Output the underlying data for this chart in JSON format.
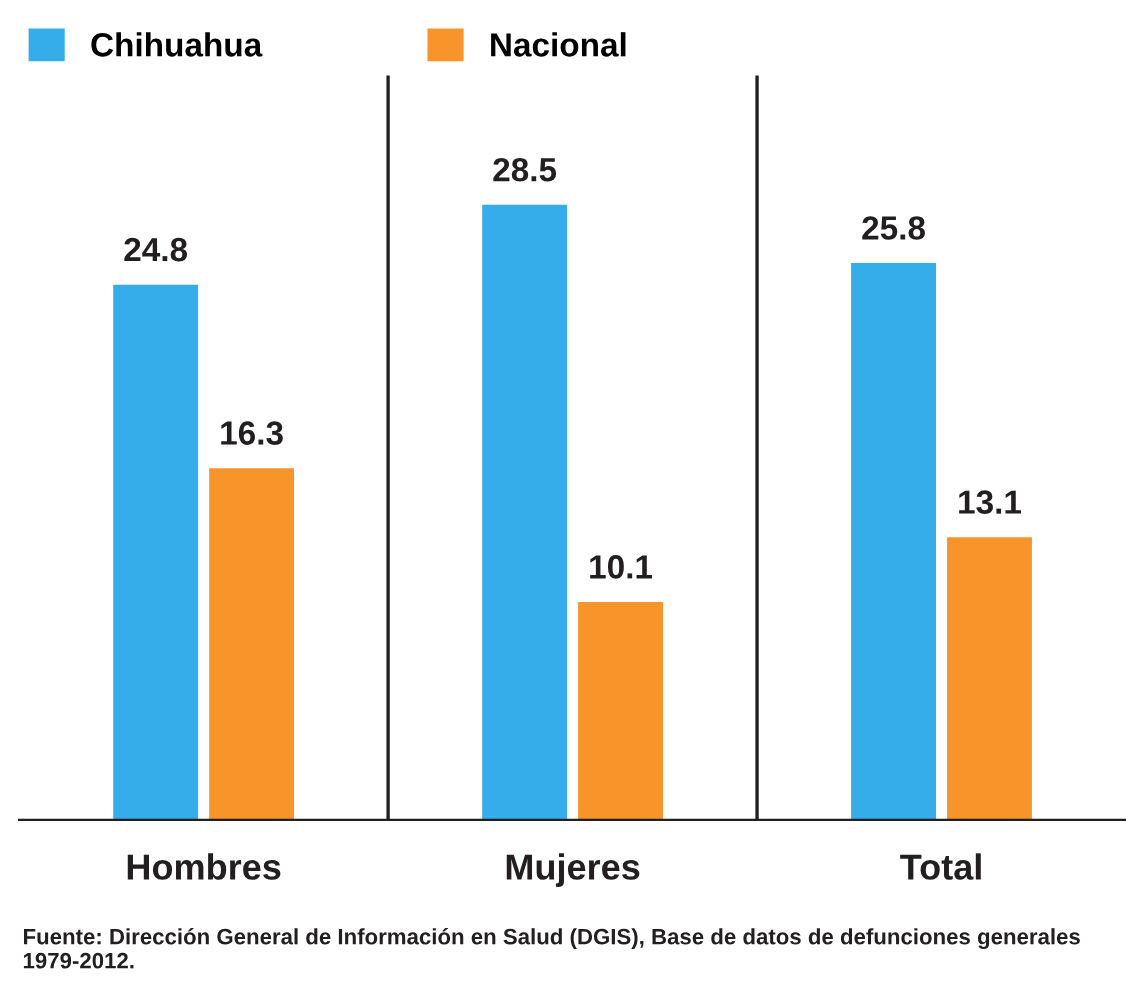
{
  "chart_data": {
    "type": "bar",
    "categories": [
      "Hombres",
      "Mujeres",
      "Total"
    ],
    "series": [
      {
        "name": "Chihuahua",
        "color": "#35adeb",
        "values": [
          24.8,
          28.5,
          25.8
        ]
      },
      {
        "name": "Nacional",
        "color": "#f7952a",
        "values": [
          16.3,
          10.1,
          13.1
        ]
      }
    ],
    "data_labels": true,
    "legend": "top left",
    "grid": false,
    "annotations": [
      "Fuente: Dirección General de Información en Salud (DGIS), Base de datos de defunciones generales 1979-2012."
    ]
  }
}
